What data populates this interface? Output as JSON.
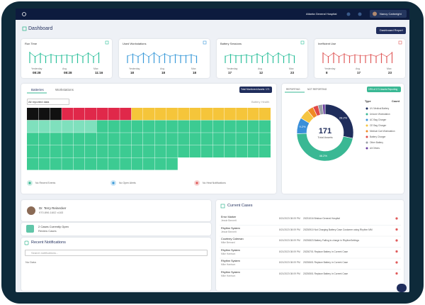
{
  "header": {
    "hospital": "Atlanta General Hospital",
    "user": "Nancy Cartwright"
  },
  "title": "Dashboard",
  "report_button": "Dashboard Report",
  "kpis": [
    {
      "title": "Run Time",
      "color": "#2bbf9a",
      "stats": [
        {
          "label": "Yesterday",
          "value": "08:28"
        },
        {
          "label": "Avg",
          "value": "08:28"
        },
        {
          "label": "Max",
          "value": "11:16"
        }
      ]
    },
    {
      "title": "Used Workstations",
      "color": "#3a9ad9",
      "stats": [
        {
          "label": "Yesterday",
          "value": "18"
        },
        {
          "label": "Avg",
          "value": "18"
        },
        {
          "label": "Max",
          "value": "18"
        }
      ]
    },
    {
      "title": "Battery Sessions",
      "color": "#2bbf9a",
      "stats": [
        {
          "label": "Yesterday",
          "value": "17"
        },
        {
          "label": "Avg",
          "value": "12"
        },
        {
          "label": "Max",
          "value": "23"
        }
      ]
    },
    {
      "title": "Inefficient Use",
      "color": "#e05a5a",
      "stats": [
        {
          "label": "Yesterday",
          "value": "8"
        },
        {
          "label": "Avg",
          "value": "17"
        },
        {
          "label": "Max",
          "value": "23"
        }
      ]
    }
  ],
  "assets": {
    "tabs": [
      "Batteries",
      "Workstations"
    ],
    "button": "Total Monitored Assets: 171",
    "filter": "All reported data",
    "legend": "Battery Health",
    "cells": [
      {
        "color": "#111111",
        "count": 3
      },
      {
        "color": "#e0284a",
        "count": 6
      },
      {
        "color": "#f5c53a",
        "count": 12
      },
      {
        "color": "#7fe0bd",
        "count": 6
      },
      {
        "color": "#3ccb92",
        "count": 70
      }
    ],
    "events": [
      "No Recent Events",
      "No Open Alerts",
      "No Heat Notifications"
    ]
  },
  "reporting": {
    "tabs": [
      "REPORTING",
      "NOT REPORTING"
    ],
    "button": "19% of 171 Assets Reporting",
    "total": 171,
    "total_label": "Total Assets",
    "legend_headers": [
      "Type",
      "Count"
    ],
    "segments": [
      {
        "name": "UV Medical Battery",
        "color": "#1f2d5c",
        "value": 28.2,
        "label": "28.2%"
      },
      {
        "name": "Unicore Workstation",
        "color": "#3ab894",
        "value": 46.2,
        "label": "46.2%"
      },
      {
        "name": "AC Bag Charger",
        "color": "#3a8fd9",
        "value": 9.2,
        "label": "9.2%"
      },
      {
        "name": "CE Bag Charger",
        "color": "#f5c542",
        "value": 5.8
      },
      {
        "name": "Medical Cart Workstation",
        "color": "#f08a24",
        "value": 3.5
      },
      {
        "name": "Battery Charger",
        "color": "#e04848",
        "value": 3.0
      },
      {
        "name": "Other Battery",
        "color": "#9aa0a6",
        "value": 2.6
      },
      {
        "name": "All Others",
        "color": "#6b3fa0",
        "value": 1.5
      }
    ]
  },
  "contact": {
    "name": "Dr. Terry Reinecker",
    "phone": "970.896.1602 x183"
  },
  "open_cases": {
    "text": "2 Cases Currently Open",
    "link": "Review Cases"
  },
  "notifications": {
    "title": "Recent Notifications",
    "search": "Search notifications...",
    "empty": "No Data"
  },
  "cases": {
    "title": "Current Cases",
    "rows": [
      {
        "name": "Error Marker",
        "person": "Jessie Bennett",
        "date": "8/21/2023 08:09 PM",
        "desc": "20231016 Bristow General Hospital"
      },
      {
        "name": "Rhythm System",
        "person": "Jessie Bennett",
        "date": "8/21/2023 08:09 PM",
        "desc": "20230910 Not Charging Battery Case Customer using Rhythm MM"
      },
      {
        "name": "Courtney Coleman",
        "person": "Mike Bernard",
        "date": "8/21/2023 08:09 PM",
        "desc": "20230823 Battery Failing to charge in RhythmSettings"
      },
      {
        "name": "Rhythm System",
        "person": "Mike Harrison",
        "date": "8/21/2023 08:09 PM",
        "desc": "20230701 Replace Battery in Current Case"
      },
      {
        "name": "Rhythm System",
        "person": "Mike Harrison",
        "date": "8/21/2023 08:09 PM",
        "desc": "20230601 Replace Battery in Current Case"
      },
      {
        "name": "Rhythm System",
        "person": "Mike Harrison",
        "date": "8/21/2023 08:09 PM",
        "desc": "20230501 Replace Battery in Current Case"
      }
    ]
  }
}
